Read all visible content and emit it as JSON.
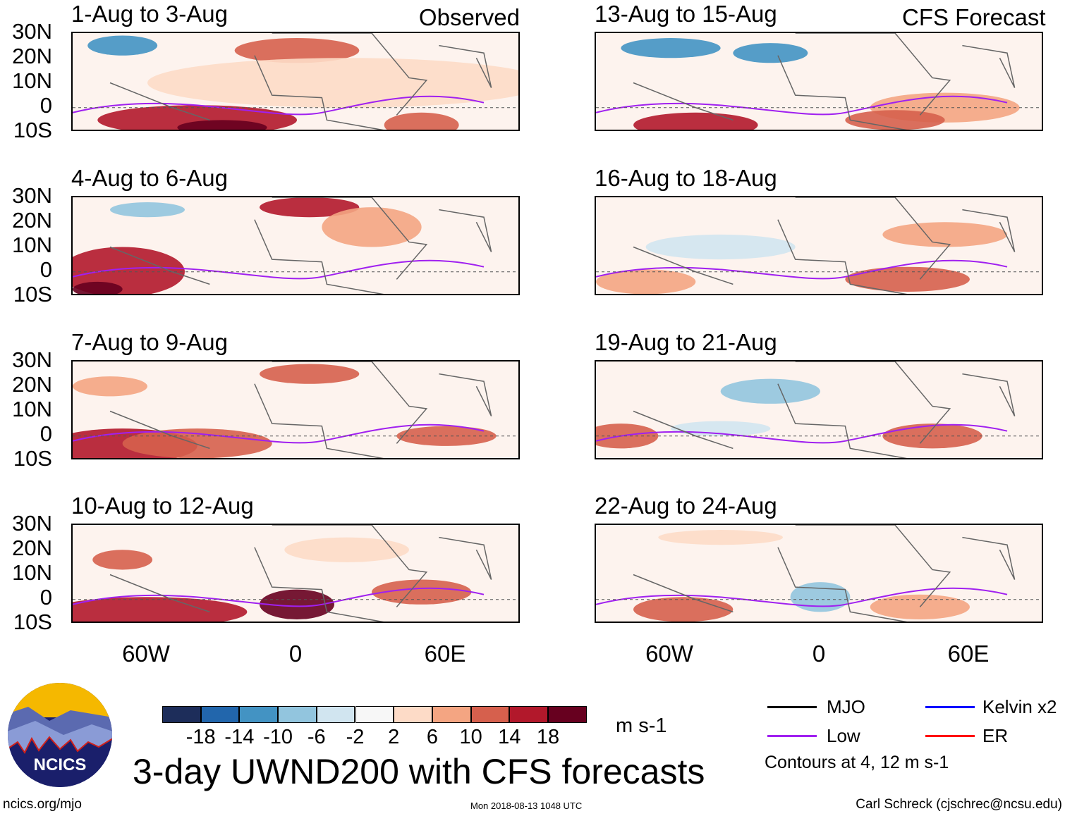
{
  "panels": [
    {
      "title": "1-Aug to 3-Aug",
      "label": "Observed"
    },
    {
      "title": "4-Aug to 6-Aug"
    },
    {
      "title": "7-Aug to 9-Aug"
    },
    {
      "title": "10-Aug to 12-Aug"
    },
    {
      "title": "13-Aug to 15-Aug",
      "label": "CFS Forecast"
    },
    {
      "title": "16-Aug to 18-Aug"
    },
    {
      "title": "19-Aug to 21-Aug"
    },
    {
      "title": "22-Aug to 24-Aug"
    }
  ],
  "lat_labels": [
    "30N",
    "20N",
    "10N",
    "0",
    "10S"
  ],
  "lon_labels": [
    "60W",
    "0",
    "60E"
  ],
  "colorbar": {
    "labels": [
      "-18",
      "-14",
      "-10",
      "-6",
      "-2",
      "2",
      "6",
      "10",
      "14",
      "18"
    ],
    "colors": [
      "#1d2d5a",
      "#2266ac",
      "#4393c3",
      "#92c5de",
      "#d1e5f0",
      "#f7f7f7",
      "#fddbc7",
      "#f4a582",
      "#d6604d",
      "#b2182b",
      "#67001f"
    ],
    "units": "m s-1"
  },
  "title": "3-day UWND200 with CFS forecasts",
  "legend": {
    "items": [
      {
        "label": "MJO",
        "color": "#000000"
      },
      {
        "label": "Kelvin x2",
        "color": "#0000ff"
      },
      {
        "label": "Low",
        "color": "#a020f0"
      },
      {
        "label": "ER",
        "color": "#ff0000"
      }
    ],
    "note": "Contours at 4, 12 m s-1"
  },
  "logo_text": "NCICS",
  "footer": {
    "left": "ncics.org/mjo",
    "center": "Mon 2018-08-13 1048 UTC",
    "right": "Carl Schreck (cjschrec@ncsu.edu)"
  }
}
